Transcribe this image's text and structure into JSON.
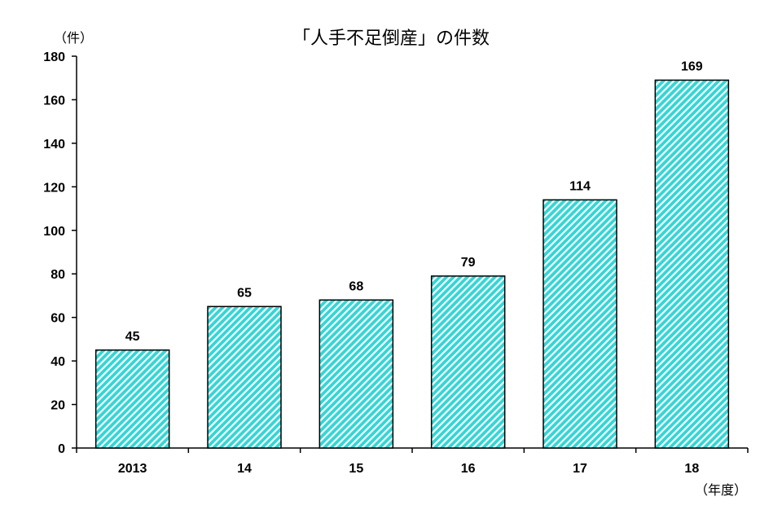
{
  "chart_data": {
    "type": "bar",
    "title": "「人手不足倒産」の件数",
    "xlabel": "（年度）",
    "ylabel": "（件）",
    "categories": [
      "2013",
      "14",
      "15",
      "16",
      "17",
      "18"
    ],
    "values": [
      45,
      65,
      68,
      79,
      114,
      169
    ],
    "ylim": [
      0,
      180
    ],
    "yticks": [
      0,
      20,
      40,
      60,
      80,
      100,
      120,
      140,
      160,
      180
    ],
    "grid": false,
    "legend": null,
    "bar_fill": "#33d6d6",
    "bar_stripe": "#ffffff",
    "bar_edge": "#000000",
    "data_labels": true
  }
}
